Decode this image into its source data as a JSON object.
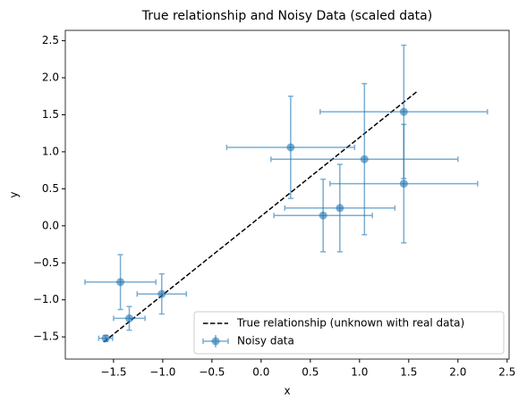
{
  "chart_data": {
    "type": "errorbar",
    "title": "True relationship and Noisy Data (scaled data)",
    "x_label": "x",
    "y_label": "y",
    "xlim": [
      -1.99,
      2.52
    ],
    "ylim": [
      -1.8,
      2.64
    ],
    "xticks": [
      {
        "value": -1.5,
        "label": "−1.5"
      },
      {
        "value": -1.0,
        "label": "−1.0"
      },
      {
        "value": -0.5,
        "label": "−0.5"
      },
      {
        "value": 0,
        "label": "0.0"
      },
      {
        "value": 0.5,
        "label": "0.5"
      },
      {
        "value": 1.0,
        "label": "1.0"
      },
      {
        "value": 1.5,
        "label": "1.5"
      },
      {
        "value": 2.0,
        "label": "2.0"
      },
      {
        "value": 2.5,
        "label": "2.5"
      }
    ],
    "yticks": [
      {
        "value": -1.5,
        "label": "−1.5"
      },
      {
        "value": -1.0,
        "label": "−1.0"
      },
      {
        "value": -0.5,
        "label": "−0.5"
      },
      {
        "value": 0,
        "label": "0.0"
      },
      {
        "value": 0.5,
        "label": "0.5"
      },
      {
        "value": 1.0,
        "label": "1.0"
      },
      {
        "value": 1.5,
        "label": "1.5"
      },
      {
        "value": 2.0,
        "label": "2.0"
      },
      {
        "value": 2.5,
        "label": "2.5"
      }
    ],
    "legend": "lower right",
    "series": [
      {
        "name": "True relationship (unknown with real data)",
        "kind": "line",
        "color": "#000000",
        "x": [
          -1.6,
          1.58
        ],
        "values": [
          -1.57,
          1.81
        ]
      },
      {
        "name": "Noisy data",
        "kind": "errorbar",
        "color": "#1f77b4",
        "x": [
          -1.58,
          -1.34,
          -1.43,
          -1.01,
          0.3,
          0.63,
          0.8,
          1.05,
          1.45,
          1.45
        ],
        "values": [
          -1.52,
          -1.25,
          -0.76,
          -0.92,
          1.06,
          0.14,
          0.24,
          0.9,
          1.54,
          0.57
        ],
        "xerr": [
          0.07,
          0.16,
          0.36,
          0.25,
          0.65,
          0.5,
          0.56,
          0.95,
          0.85,
          0.75
        ],
        "yerr": [
          0.04,
          0.16,
          0.37,
          0.27,
          0.69,
          0.49,
          0.59,
          1.02,
          0.9,
          0.8
        ]
      }
    ]
  }
}
